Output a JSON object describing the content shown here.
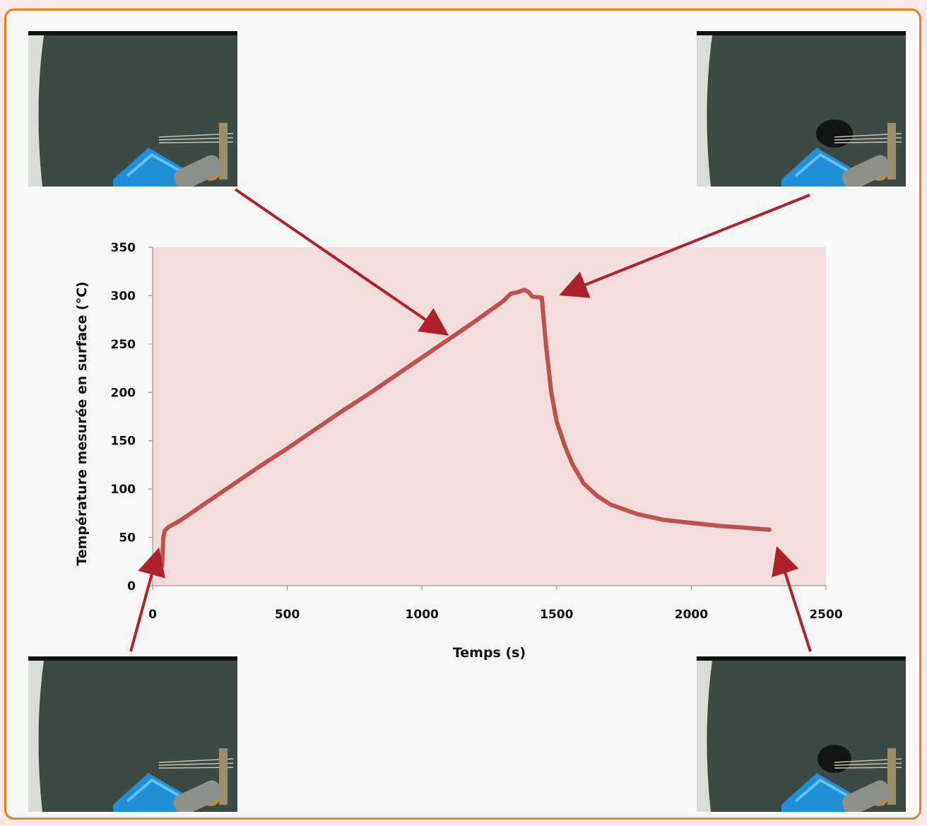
{
  "chart_data": {
    "type": "line",
    "xlabel": "Temps (s)",
    "ylabel": "Température mesurée en surface (°C)",
    "xlim": [
      0,
      2500
    ],
    "ylim": [
      0,
      350
    ],
    "x_ticks": [
      "0",
      "500",
      "1000",
      "1500",
      "2000",
      "2500"
    ],
    "y_ticks": [
      "0",
      "50",
      "100",
      "150",
      "200",
      "250",
      "300",
      "350"
    ],
    "grid": false,
    "plot_background": "#f2dcdc",
    "line_color": "#c0504d",
    "arrow_color": "#b0212b",
    "series": [
      {
        "x": [
          20,
          35,
          40,
          45,
          60,
          100,
          200,
          300,
          400,
          500,
          600,
          700,
          800,
          900,
          1000,
          1100,
          1200,
          1300,
          1330,
          1360,
          1380,
          1395,
          1410,
          1445,
          1460,
          1480,
          1500,
          1530,
          1560,
          1600,
          1650,
          1700,
          1800,
          1900,
          2000,
          2100,
          2200,
          2290
        ],
        "y": [
          20,
          20,
          50,
          57,
          61,
          67,
          86,
          105,
          124,
          142,
          161,
          180,
          198,
          217,
          236,
          255,
          274,
          294,
          302,
          304,
          306,
          304,
          299,
          298,
          250,
          200,
          170,
          145,
          125,
          106,
          93,
          84,
          74,
          68,
          65,
          62,
          60,
          58
        ]
      }
    ]
  },
  "photos": [
    {
      "position": "top-left",
      "description_icon": "camera-frame-icon"
    },
    {
      "position": "top-right",
      "description_icon": "camera-frame-icon"
    },
    {
      "position": "bottom-left",
      "description_icon": "camera-frame-icon"
    },
    {
      "position": "bottom-right",
      "description_icon": "camera-frame-icon"
    }
  ]
}
